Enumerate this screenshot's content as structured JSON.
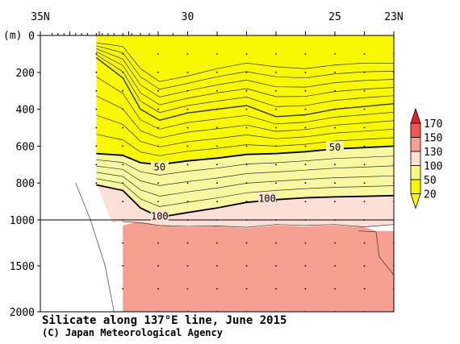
{
  "chart_data": {
    "type": "contour",
    "title": "Silicate along 137°E line, June 2015",
    "credit": "(C) Japan Meteorological Agency",
    "x_axis": {
      "ticks": [
        {
          "value": 35,
          "label": "35N"
        },
        {
          "value": 30,
          "label": "30"
        },
        {
          "value": 25,
          "label": "25"
        },
        {
          "value": 23,
          "label": "23N"
        }
      ],
      "range": [
        35,
        23
      ]
    },
    "y_axis": {
      "unit_label": "(m)",
      "ticks": [
        {
          "value": 0,
          "label": "0"
        },
        {
          "value": 200,
          "label": "200"
        },
        {
          "value": 400,
          "label": "400"
        },
        {
          "value": 600,
          "label": "600"
        },
        {
          "value": 800,
          "label": "800"
        },
        {
          "value": 1000,
          "label": "1000"
        },
        {
          "value": 1500,
          "label": "1500"
        },
        {
          "value": 2000,
          "label": "2000"
        }
      ],
      "scale_break_depth": 1000
    },
    "colorbar": {
      "levels": [
        "170",
        "150",
        "130",
        "100",
        "50",
        "20"
      ],
      "colors": [
        "#e8202a",
        "#f05a4a",
        "#f5a090",
        "#fce0d8",
        "#f8f880",
        "#f8f800"
      ]
    },
    "contour_labels": [
      {
        "text": "50",
        "lat": 30.95,
        "depth": 715
      },
      {
        "text": "50",
        "lat": 25.0,
        "depth": 608
      },
      {
        "text": "100",
        "lat": 27.3,
        "depth": 885
      },
      {
        "text": "100",
        "lat": 30.95,
        "depth": 980
      }
    ],
    "station_latitudes": [
      33.1,
      32.2,
      31.0,
      30.0,
      29.0,
      28.0,
      27.0,
      26.0,
      25.0,
      24.0,
      23.0
    ]
  }
}
